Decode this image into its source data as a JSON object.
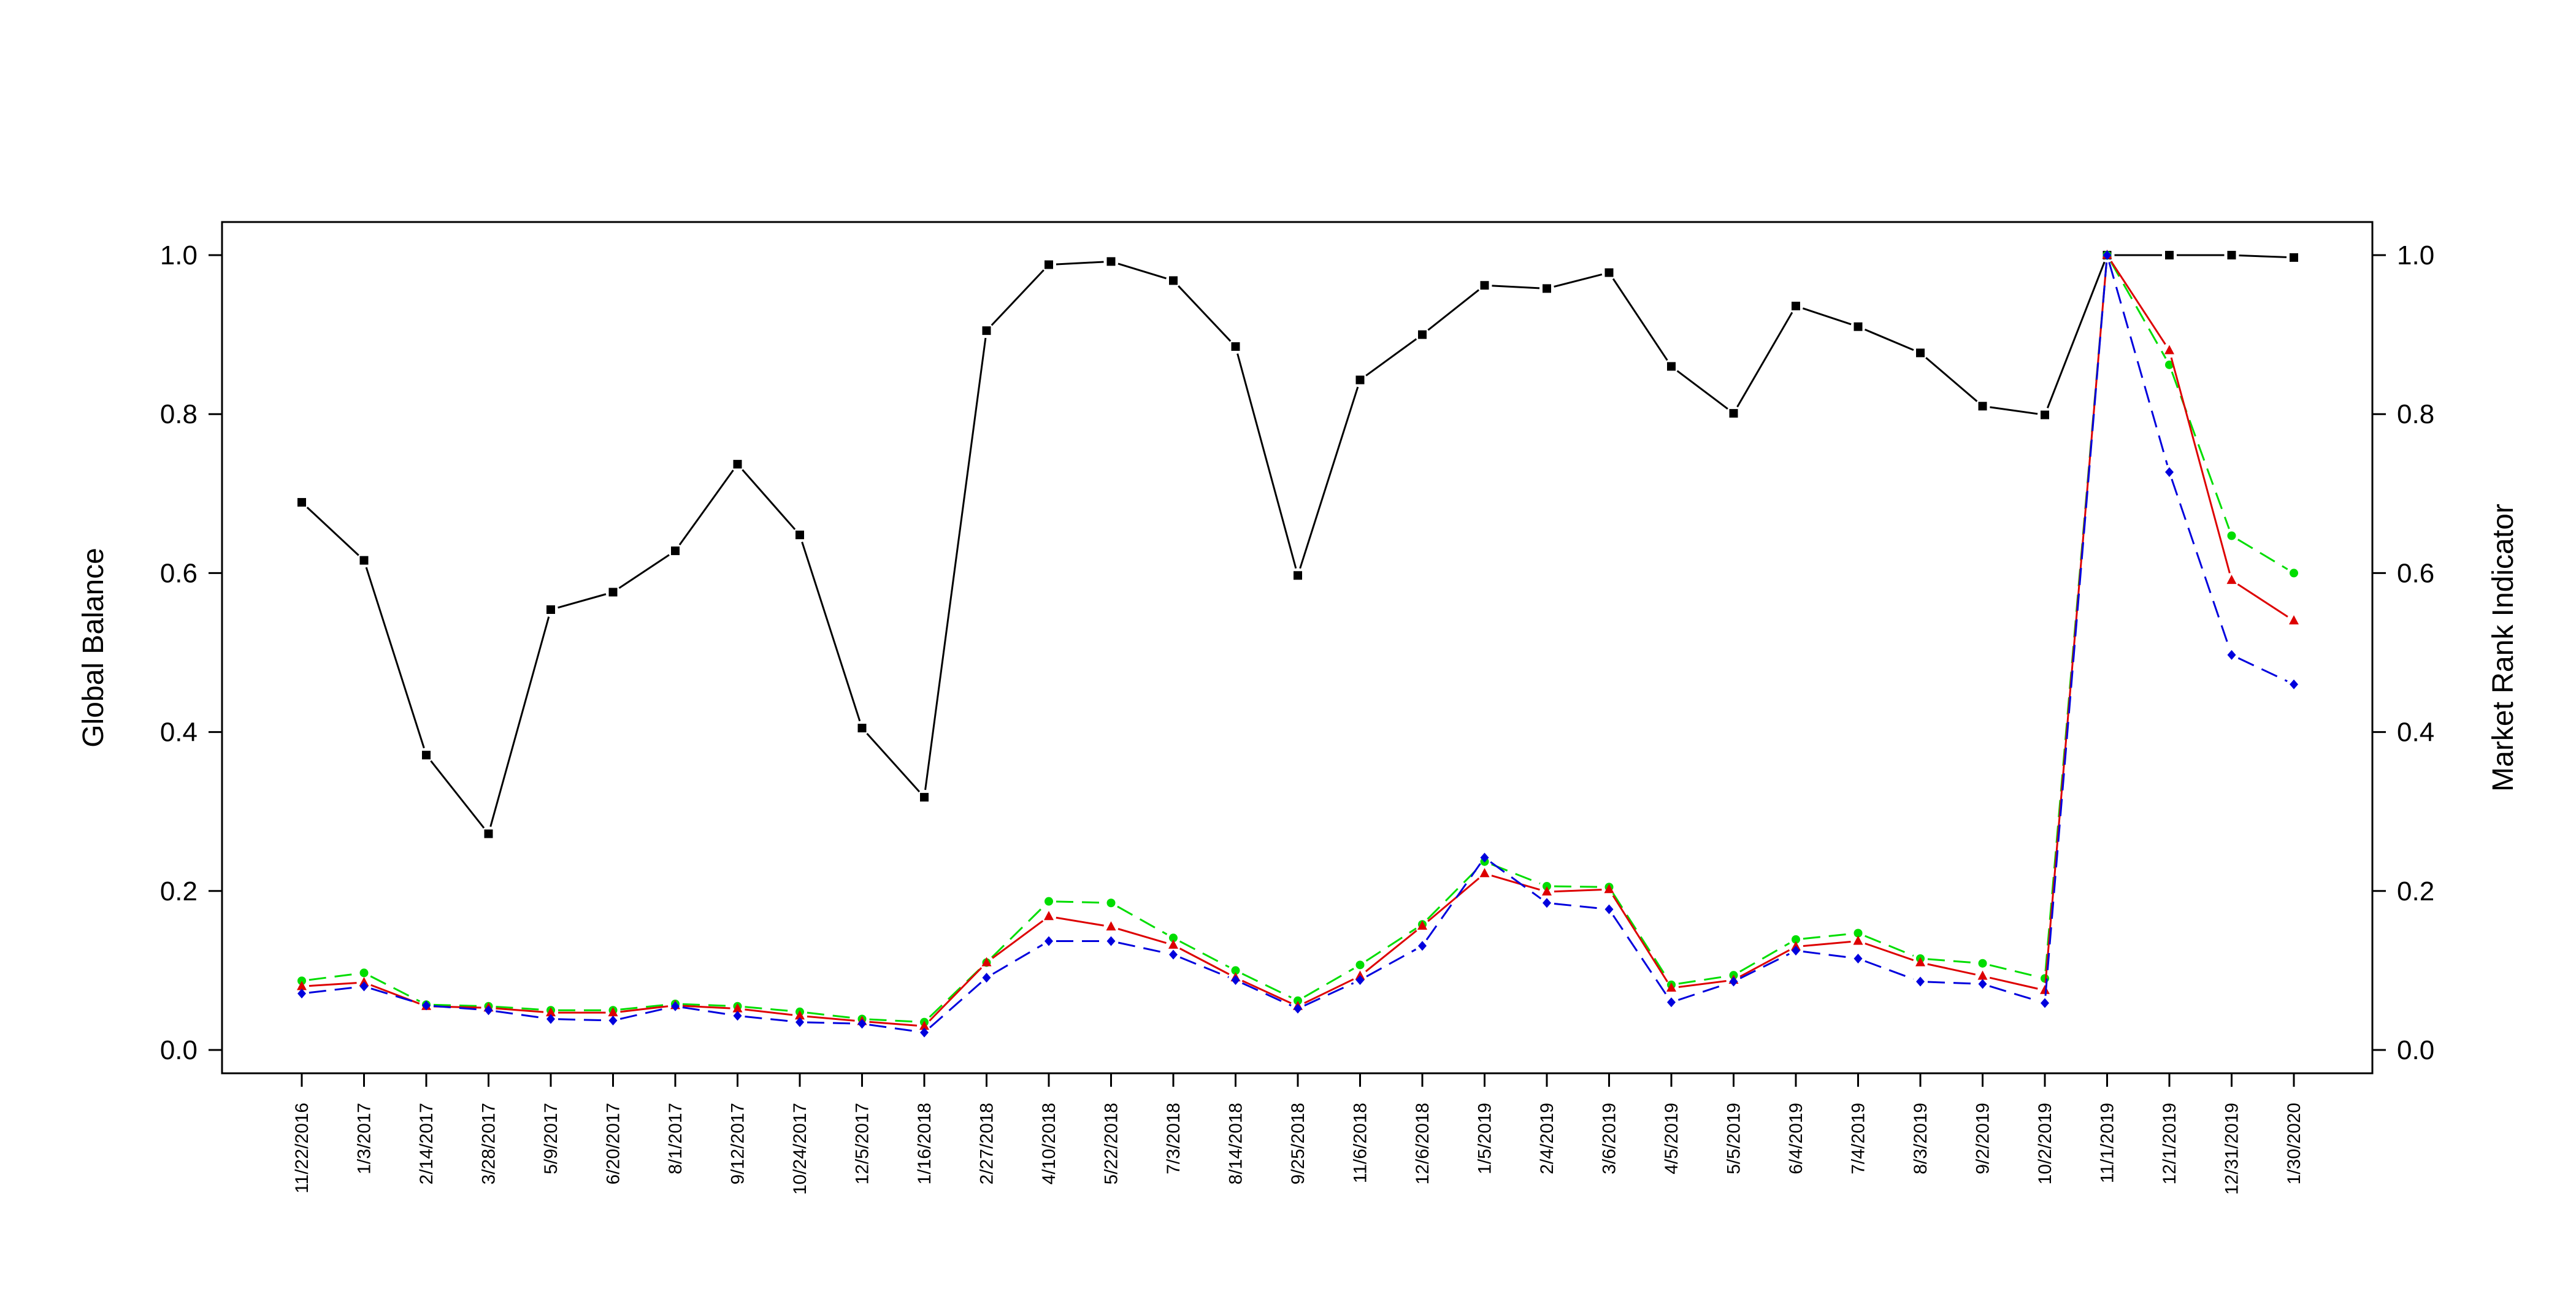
{
  "chart_data": {
    "type": "line",
    "title": "",
    "ylabel_left": "Global Balance",
    "ylabel_right": "Market Rank Indicator",
    "ylim_left": [
      0,
      1
    ],
    "ylim_right": [
      0,
      1
    ],
    "y_ticks_left": [
      "0.0",
      "0.2",
      "0.4",
      "0.6",
      "0.8",
      "1.0"
    ],
    "y_ticks_right": [
      "0.0",
      "0.2",
      "0.4",
      "0.6",
      "0.8",
      "1.0"
    ],
    "grid": false,
    "legend": "none",
    "categories": [
      "11/22/2016",
      "1/3/2017",
      "2/14/2017",
      "3/28/2017",
      "5/9/2017",
      "6/20/2017",
      "8/1/2017",
      "9/12/2017",
      "10/24/2017",
      "12/5/2017",
      "1/16/2018",
      "2/27/2018",
      "4/10/2018",
      "5/22/2018",
      "7/3/2018",
      "8/14/2018",
      "9/25/2018",
      "11/6/2018",
      "12/6/2018",
      "1/5/2019",
      "2/4/2019",
      "3/6/2019",
      "4/5/2019",
      "5/5/2019",
      "6/4/2019",
      "7/4/2019",
      "8/3/2019",
      "9/2/2019",
      "10/2/2019",
      "11/1/2019",
      "12/1/2019",
      "12/31/2019",
      "1/30/2020"
    ],
    "series": [
      {
        "axis": "left",
        "color": "#000000",
        "line": "solid",
        "marker": "square",
        "values": [
          0.689,
          0.616,
          0.371,
          0.272,
          0.554,
          0.576,
          0.628,
          0.737,
          0.648,
          0.405,
          0.318,
          0.905,
          0.988,
          0.992,
          0.968,
          0.885,
          0.597,
          0.843,
          0.9,
          0.962,
          0.958,
          0.978,
          0.86,
          0.801,
          0.936,
          0.91,
          0.877,
          0.81,
          0.799,
          1.0,
          1.0,
          1.0,
          0.997
        ]
      },
      {
        "axis": "right",
        "color": "#00dd00",
        "line": "dashed",
        "marker": "circle",
        "values": [
          0.087,
          0.097,
          0.057,
          0.055,
          0.05,
          0.05,
          0.058,
          0.055,
          0.048,
          0.039,
          0.035,
          0.11,
          0.187,
          0.185,
          0.141,
          0.1,
          0.062,
          0.107,
          0.158,
          0.237,
          0.206,
          0.205,
          0.082,
          0.094,
          0.139,
          0.147,
          0.115,
          0.109,
          0.09,
          1.0,
          0.862,
          0.647,
          0.6
        ]
      },
      {
        "axis": "right",
        "color": "#dd0000",
        "line": "solid",
        "marker": "triangle",
        "values": [
          0.08,
          0.085,
          0.055,
          0.053,
          0.047,
          0.047,
          0.056,
          0.052,
          0.043,
          0.036,
          0.03,
          0.11,
          0.168,
          0.155,
          0.132,
          0.091,
          0.055,
          0.093,
          0.156,
          0.222,
          0.199,
          0.202,
          0.078,
          0.088,
          0.13,
          0.137,
          0.11,
          0.093,
          0.075,
          1.0,
          0.88,
          0.591,
          0.54
        ]
      },
      {
        "axis": "right",
        "color": "#0000dd",
        "line": "dashed",
        "marker": "diamond",
        "values": [
          0.071,
          0.08,
          0.056,
          0.05,
          0.039,
          0.037,
          0.055,
          0.043,
          0.035,
          0.033,
          0.022,
          0.091,
          0.137,
          0.137,
          0.12,
          0.088,
          0.052,
          0.088,
          0.131,
          0.242,
          0.185,
          0.177,
          0.06,
          0.086,
          0.125,
          0.115,
          0.086,
          0.083,
          0.059,
          1.0,
          0.727,
          0.497,
          0.46
        ]
      }
    ]
  }
}
